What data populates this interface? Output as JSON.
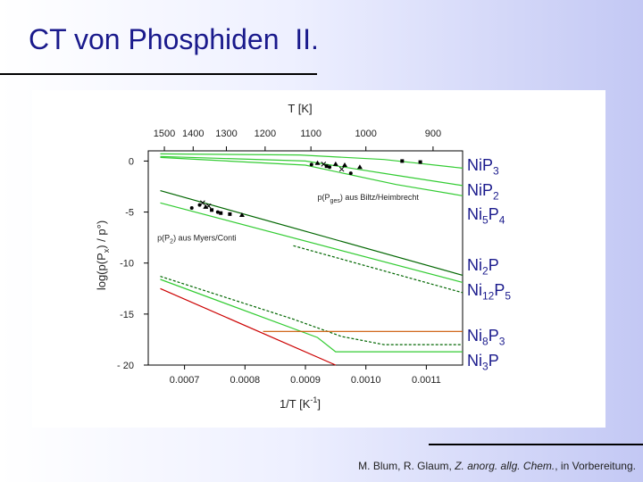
{
  "slide": {
    "title": "CT von Phosphiden  II."
  },
  "labels": {
    "group1": [
      {
        "el": "Ni",
        "n1": "",
        "el2": "P",
        "n2": "3"
      },
      {
        "el": "Ni",
        "n1": "",
        "el2": "P",
        "n2": "2"
      },
      {
        "el": "Ni",
        "n1": "5",
        "el2": "P",
        "n2": "4"
      }
    ],
    "group2": [
      {
        "el": "Ni",
        "n1": "2",
        "el2": "P",
        "n2": ""
      },
      {
        "el": "Ni",
        "n1": "12",
        "el2": "P",
        "n2": "5"
      }
    ],
    "group3": [
      {
        "el": "Ni",
        "n1": "8",
        "el2": "P",
        "n2": "3"
      },
      {
        "el": "Ni",
        "n1": "3",
        "el2": "P",
        "n2": ""
      }
    ]
  },
  "citation": {
    "authors": "M. Blum, R. Glaum, ",
    "journal": "Z. anorg. allg. Chem.",
    "status": ", in Vorbereitung."
  },
  "colors": {
    "green": "#33cc33",
    "darkgreen": "#006600",
    "red": "#cc0000",
    "orange": "#cc5500",
    "title": "#1a1a8c"
  },
  "chart_data": {
    "type": "line",
    "xlabel": "1/T [K",
    "xlabel_sup": "-1",
    "xlabel_end": "]",
    "ylabel": "log(p(P",
    "ylabel_sub": "x",
    "ylabel_end": ") / p°)",
    "top_axis_label": "T [K]",
    "xlim": [
      0.00064,
      0.00116
    ],
    "ylim": [
      -20,
      1
    ],
    "x_ticks": [
      {
        "v": 0.0007,
        "label": "0.0007"
      },
      {
        "v": 0.0008,
        "label": "0.0008"
      },
      {
        "v": 0.0009,
        "label": "0.0009"
      },
      {
        "v": 0.001,
        "label": "0.0010"
      },
      {
        "v": 0.0011,
        "label": "0.0011"
      }
    ],
    "y_ticks": [
      {
        "v": 0,
        "label": "0"
      },
      {
        "v": -5,
        "label": "-5"
      },
      {
        "v": -10,
        "label": "-10"
      },
      {
        "v": -15,
        "label": "-15"
      },
      {
        "v": -20,
        "label": "- 20"
      }
    ],
    "top_ticks": [
      {
        "T": 1500,
        "label": "1500"
      },
      {
        "T": 1400,
        "label": "1400"
      },
      {
        "T": 1300,
        "label": "1300"
      },
      {
        "T": 1200,
        "label": "1200"
      },
      {
        "T": 1100,
        "label": "1100"
      },
      {
        "T": 1000,
        "label": "1000"
      },
      {
        "T": 900,
        "label": "900"
      }
    ],
    "annotations": [
      {
        "pre": "p(P",
        "sub": "ges",
        "post": ") aus Biltz/Heimbrecht",
        "x": 0.00092,
        "y": -3.8
      },
      {
        "pre": "p(P",
        "sub": "2",
        "post": ") aus Myers/Conti",
        "x": 0.000655,
        "y": -7.8
      }
    ],
    "series": [
      {
        "color": "#33cc33",
        "dash": "",
        "points": [
          [
            0.00066,
            0.7
          ],
          [
            0.00089,
            0.6
          ],
          [
            0.00103,
            0.15
          ],
          [
            0.00116,
            -0.7
          ]
        ]
      },
      {
        "color": "#33cc33",
        "dash": "",
        "points": [
          [
            0.00066,
            0.45
          ],
          [
            0.0009,
            0.0
          ],
          [
            0.00105,
            -1.4
          ],
          [
            0.00116,
            -2.4
          ]
        ]
      },
      {
        "color": "#33cc33",
        "dash": "",
        "points": [
          [
            0.00066,
            0.35
          ],
          [
            0.0009,
            -0.4
          ],
          [
            0.00105,
            -2.3
          ],
          [
            0.00116,
            -3.4
          ]
        ]
      },
      {
        "color": "#006600",
        "dash": "",
        "points": [
          [
            0.00066,
            -2.9
          ],
          [
            0.00116,
            -11.2
          ]
        ]
      },
      {
        "color": "#33cc33",
        "dash": "",
        "points": [
          [
            0.00066,
            -4.1
          ],
          [
            0.00116,
            -11.9
          ]
        ]
      },
      {
        "color": "#006600",
        "dash": "3,2",
        "points": [
          [
            0.00088,
            -8.3
          ],
          [
            0.00116,
            -12.9
          ]
        ]
      },
      {
        "color": "#006600",
        "dash": "3,2",
        "points": [
          [
            0.00066,
            -11.3
          ],
          [
            0.00088,
            -15.5
          ],
          [
            0.00096,
            -17.2
          ],
          [
            0.00103,
            -18.0
          ],
          [
            0.00116,
            -18.0
          ]
        ]
      },
      {
        "color": "#33cc33",
        "dash": "",
        "points": [
          [
            0.00066,
            -11.6
          ],
          [
            0.00092,
            -17.3
          ],
          [
            0.00095,
            -18.7
          ],
          [
            0.00116,
            -18.7
          ]
        ]
      },
      {
        "color": "#cc5500",
        "dash": "",
        "points": [
          [
            0.00083,
            -16.7
          ],
          [
            0.00116,
            -16.7
          ]
        ]
      },
      {
        "color": "#cc0000",
        "dash": "",
        "points": [
          [
            0.00066,
            -12.5
          ],
          [
            0.00095,
            -20.0
          ]
        ]
      }
    ],
    "markers": {
      "squares": [
        [
          0.000935,
          -0.5
        ],
        [
          0.00106,
          0.0
        ],
        [
          0.00109,
          -0.1
        ],
        [
          0.000745,
          -4.8
        ],
        [
          0.00076,
          -5.1
        ],
        [
          0.000775,
          -5.2
        ]
      ],
      "triangles": [
        [
          0.00092,
          -0.2
        ],
        [
          0.00095,
          -0.3
        ],
        [
          0.000965,
          -0.4
        ],
        [
          0.00099,
          -0.6
        ],
        [
          0.000795,
          -5.3
        ],
        [
          0.000735,
          -4.5
        ]
      ],
      "dots": [
        [
          0.00091,
          -0.35
        ],
        [
          0.00094,
          -0.6
        ],
        [
          0.000975,
          -1.2
        ],
        [
          0.000712,
          -4.6
        ],
        [
          0.000755,
          -5.0
        ],
        [
          0.000725,
          -4.3
        ]
      ],
      "crosses": [
        [
          0.00093,
          -0.3
        ],
        [
          0.00096,
          -0.8
        ],
        [
          0.00073,
          -4.1
        ],
        [
          0.00074,
          -4.4
        ]
      ]
    }
  }
}
